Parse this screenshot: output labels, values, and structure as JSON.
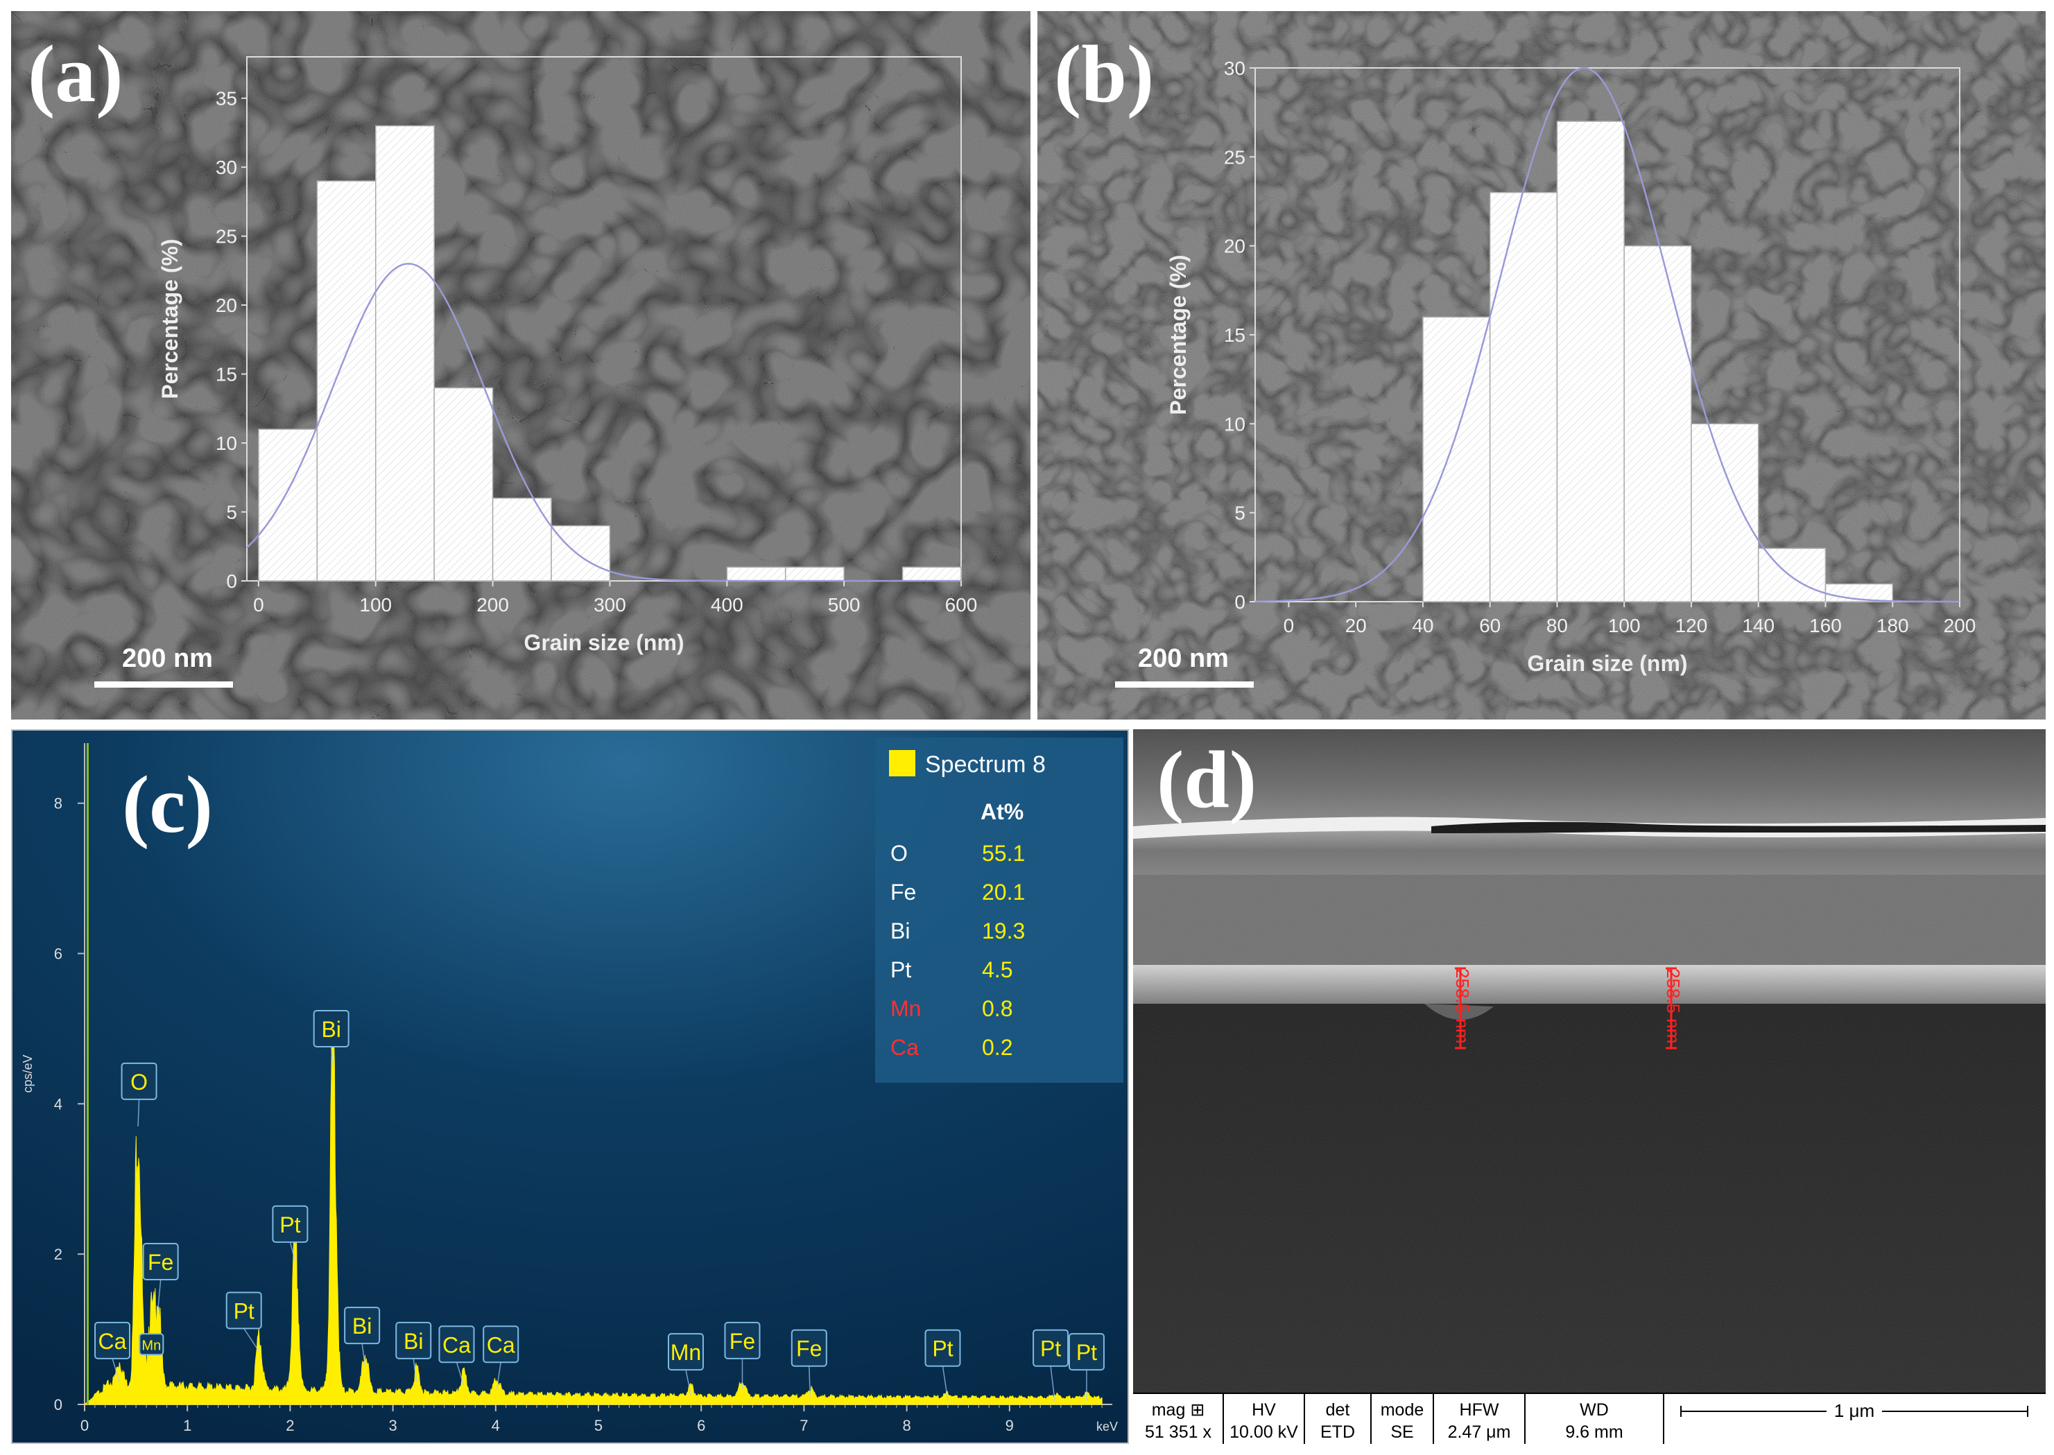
{
  "colors": {
    "sem_bg": "#6c6c6c",
    "bar_fill": "#ffffff",
    "fit_line": "#9a9ad8",
    "axis": "#dddddd",
    "eds_bg": "#0d3a5e",
    "eds_yellow": "#ffee00",
    "eds_red": "#ff3030",
    "measure_red": "#ff2020"
  },
  "chart_data": [
    {
      "type": "bar",
      "panel_label": "(a)",
      "title": "",
      "xlabel": "Grain size (nm)",
      "ylabel": "Percentage (%)",
      "bin_width": 50,
      "bin_starts": [
        0,
        50,
        100,
        150,
        200,
        250,
        300,
        350,
        400,
        450,
        500,
        550
      ],
      "values": [
        11,
        29,
        33,
        14,
        6,
        4,
        0,
        0,
        1,
        1,
        0,
        1
      ],
      "xlim": [
        -10,
        600
      ],
      "ylim": [
        0,
        38
      ],
      "xticks": [
        "0",
        "100",
        "200",
        "300",
        "400",
        "500",
        "600"
      ],
      "yticks": [
        "0",
        "5",
        "10",
        "15",
        "20",
        "25",
        "30",
        "35"
      ],
      "fit": {
        "type": "gaussian",
        "mean": 128,
        "sigma": 65,
        "peak": 23
      },
      "scale_bar": "200 nm"
    },
    {
      "type": "bar",
      "panel_label": "(b)",
      "title": "",
      "xlabel": "Grain size (nm)",
      "ylabel": "Percentage (%)",
      "bin_width": 20,
      "bin_starts": [
        40,
        60,
        80,
        100,
        120,
        140,
        160
      ],
      "values": [
        16,
        23,
        27,
        20,
        10,
        3,
        1
      ],
      "xlim": [
        -10,
        200
      ],
      "ylim": [
        0,
        30
      ],
      "xticks": [
        "0",
        "20",
        "40",
        "60",
        "80",
        "100",
        "120",
        "140",
        "160",
        "180",
        "200"
      ],
      "yticks": [
        "0",
        "5",
        "10",
        "15",
        "20",
        "25",
        "30"
      ],
      "fit": {
        "type": "gaussian",
        "mean": 88,
        "sigma": 25,
        "peak": 30
      },
      "scale_bar": "200 nm"
    },
    {
      "type": "line",
      "panel_label": "(c)",
      "title": "",
      "xlabel": "keV",
      "ylabel": "cps/eV",
      "xlim": [
        0,
        10
      ],
      "ylim": [
        0,
        8.8
      ],
      "xticks": [
        "0",
        "1",
        "2",
        "3",
        "4",
        "5",
        "6",
        "7",
        "8",
        "9"
      ],
      "yticks": [
        "0",
        "2",
        "4",
        "6",
        "8"
      ],
      "legend": "Spectrum 8",
      "table_header": "At%",
      "composition": [
        {
          "element": "O",
          "at": "55.1"
        },
        {
          "element": "Fe",
          "at": "20.1"
        },
        {
          "element": "Bi",
          "at": "19.3"
        },
        {
          "element": "Pt",
          "at": "4.5"
        },
        {
          "element": "Mn",
          "at": "0.8"
        },
        {
          "element": "Ca",
          "at": "0.2"
        }
      ],
      "peaks": [
        {
          "label": "Ca",
          "kev": 0.34,
          "height": 0.3
        },
        {
          "label": "Mn",
          "kev": 0.64,
          "height": 0.9
        },
        {
          "label": "O",
          "kev": 0.52,
          "height": 3.7
        },
        {
          "label": "Fe",
          "kev": 0.71,
          "height": 1.2
        },
        {
          "label": "Pt",
          "kev": 1.7,
          "height": 0.7
        },
        {
          "label": "Pt",
          "kev": 2.05,
          "height": 1.9
        },
        {
          "label": "Bi",
          "kev": 2.42,
          "height": 4.5
        },
        {
          "label": "Bi",
          "kev": 2.73,
          "height": 0.5
        },
        {
          "label": "Bi",
          "kev": 3.23,
          "height": 0.3
        },
        {
          "label": "Ca",
          "kev": 3.69,
          "height": 0.25
        },
        {
          "label": "Ca",
          "kev": 4.01,
          "height": 0.2
        },
        {
          "label": "Mn",
          "kev": 5.9,
          "height": 0.12
        },
        {
          "label": "Fe",
          "kev": 6.4,
          "height": 0.2
        },
        {
          "label": "Fe",
          "kev": 7.06,
          "height": 0.1
        },
        {
          "label": "Pt",
          "kev": 8.4,
          "height": 0.05
        },
        {
          "label": "Pt",
          "kev": 9.44,
          "height": 0.05
        },
        {
          "label": "Pt",
          "kev": 9.75,
          "height": 0.05
        }
      ]
    }
  ],
  "panel_d": {
    "panel_label": "(d)",
    "measure_1": "258.5 nm",
    "measure_2": "258.5 nm",
    "info_headers": [
      "mag ⊞",
      "HV",
      "det",
      "mode",
      "HFW",
      "WD"
    ],
    "info_values": [
      "51 351 x",
      "10.00 kV",
      "ETD",
      "SE",
      "2.47 μm",
      "9.6 mm"
    ],
    "scale_label": "1 μm"
  }
}
